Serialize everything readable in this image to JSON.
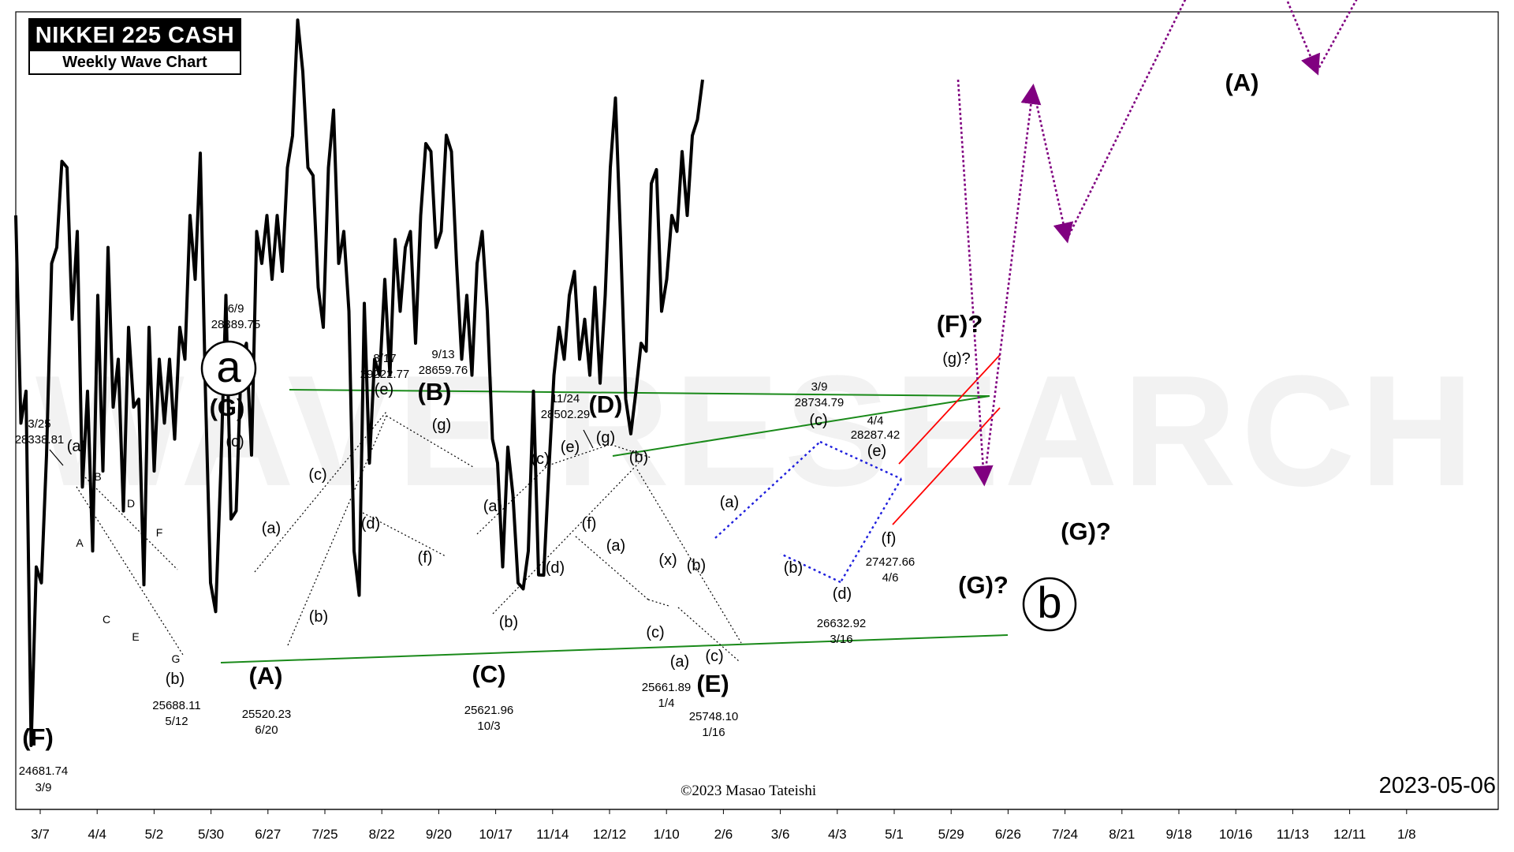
{
  "header": {
    "title": "NIKKEI 225 CASH",
    "subtitle": "Weekly Wave Chart"
  },
  "date_stamp": "2023-05-06",
  "copyright": "©2023 Masao Tateishi",
  "watermark": "WAVE RESEARCH",
  "colors": {
    "price": "#000000",
    "channel": "#1a8a1a",
    "projection": "#800080",
    "diamond": "#1f1fdd",
    "wedge": "#ff0000",
    "watermark": "#f2f2f2"
  },
  "chart_data": {
    "type": "line",
    "x_ticks": [
      "3/7",
      "4/4",
      "5/2",
      "5/30",
      "6/27",
      "7/25",
      "8/22",
      "9/20",
      "10/17",
      "11/14",
      "12/12",
      "1/10",
      "2/6",
      "3/6",
      "4/3",
      "5/1",
      "5/29",
      "6/26",
      "7/24",
      "8/21",
      "9/18",
      "10/16",
      "11/13",
      "12/11",
      "1/8"
    ],
    "series": [
      {
        "values": [
          28000,
          26700,
          26900,
          24682,
          25800,
          25700,
          26500,
          27700,
          27800,
          28339,
          28300,
          27350,
          27900,
          26300,
          26900,
          25900,
          27500,
          26400,
          27800,
          26800,
          27100,
          26150,
          27300,
          26800,
          26850,
          25688,
          27300,
          26400,
          27100,
          26700,
          27100,
          26600,
          27300,
          27100,
          28000,
          27600,
          28390,
          26900,
          25700,
          25520,
          26400,
          27500,
          26100,
          26150,
          27100,
          27200,
          26500,
          27900,
          27700,
          28000,
          27600,
          28000,
          27650,
          28300,
          28500,
          29223,
          28900,
          28300,
          28250,
          27550,
          27300,
          28300,
          28660,
          27700,
          27900,
          27400,
          25900,
          25622,
          27450,
          26450,
          27100,
          27000,
          27600,
          27000,
          27850,
          27400,
          27800,
          27900,
          27200,
          28000,
          28450,
          28400,
          27800,
          27900,
          28502,
          28400,
          27700,
          27100,
          27500,
          27000,
          27700,
          27900,
          27400,
          26600,
          26450,
          25800,
          26550,
          26250,
          25700,
          25662,
          25900,
          26900,
          25750,
          25748,
          26400,
          27000,
          27300,
          27100,
          27500,
          27650,
          27100,
          27350,
          27000,
          27550,
          26950,
          27500,
          28300,
          28735,
          27850,
          26850,
          26633,
          26900,
          27200,
          27150,
          28200,
          28287,
          27400,
          27600,
          28000,
          27900,
          28400,
          28000,
          28500,
          28600,
          28850
        ]
      },
      {
        "name": "projection",
        "values": [
          28850,
          26330,
          28800,
          27850,
          30050,
          28900,
          30200
        ]
      }
    ],
    "wave_labels": [
      "(F)",
      "(a)",
      "(b)",
      "a",
      "(G)",
      "(c)",
      "(A)",
      "(a)",
      "(b)",
      "(c)",
      "(d)",
      "(e)",
      "(f)",
      "(g)",
      "(B)",
      "(C)",
      "(a)",
      "(b)",
      "(c)",
      "(d)",
      "(e)",
      "(f)",
      "(g)",
      "(D)",
      "(b)",
      "(a)",
      "(x)",
      "(b)",
      "(c)",
      "(a)",
      "(c)",
      "(E)",
      "(a)",
      "(b)",
      "(c)",
      "(d)",
      "(e)",
      "(f)",
      "(F)?",
      "(g)?",
      "(G)?",
      "b",
      "(G)?",
      "(A)",
      "A",
      "B",
      "C",
      "D",
      "E",
      "F",
      "G"
    ],
    "annotations": [
      {
        "date": "3/9",
        "value": "24681.74"
      },
      {
        "date": "3/25",
        "value": "28338.81"
      },
      {
        "date": "5/12",
        "value": "25688.11"
      },
      {
        "date": "6/9",
        "value": "28389.75"
      },
      {
        "date": "6/20",
        "value": "25520.23"
      },
      {
        "date": "8/17",
        "value": "29222.77"
      },
      {
        "date": "9/13",
        "value": "28659.76"
      },
      {
        "date": "10/3",
        "value": "25621.96"
      },
      {
        "date": "11/24",
        "value": "28502.29"
      },
      {
        "date": "1/4",
        "value": "25661.89"
      },
      {
        "date": "1/16",
        "value": "25748.10"
      },
      {
        "date": "3/9",
        "value": "28734.79"
      },
      {
        "date": "3/16",
        "value": "26632.92"
      },
      {
        "date": "4/4",
        "value": "28287.42"
      },
      {
        "date": "4/6",
        "value": "27427.66"
      }
    ],
    "grid": false,
    "legend": "none"
  }
}
